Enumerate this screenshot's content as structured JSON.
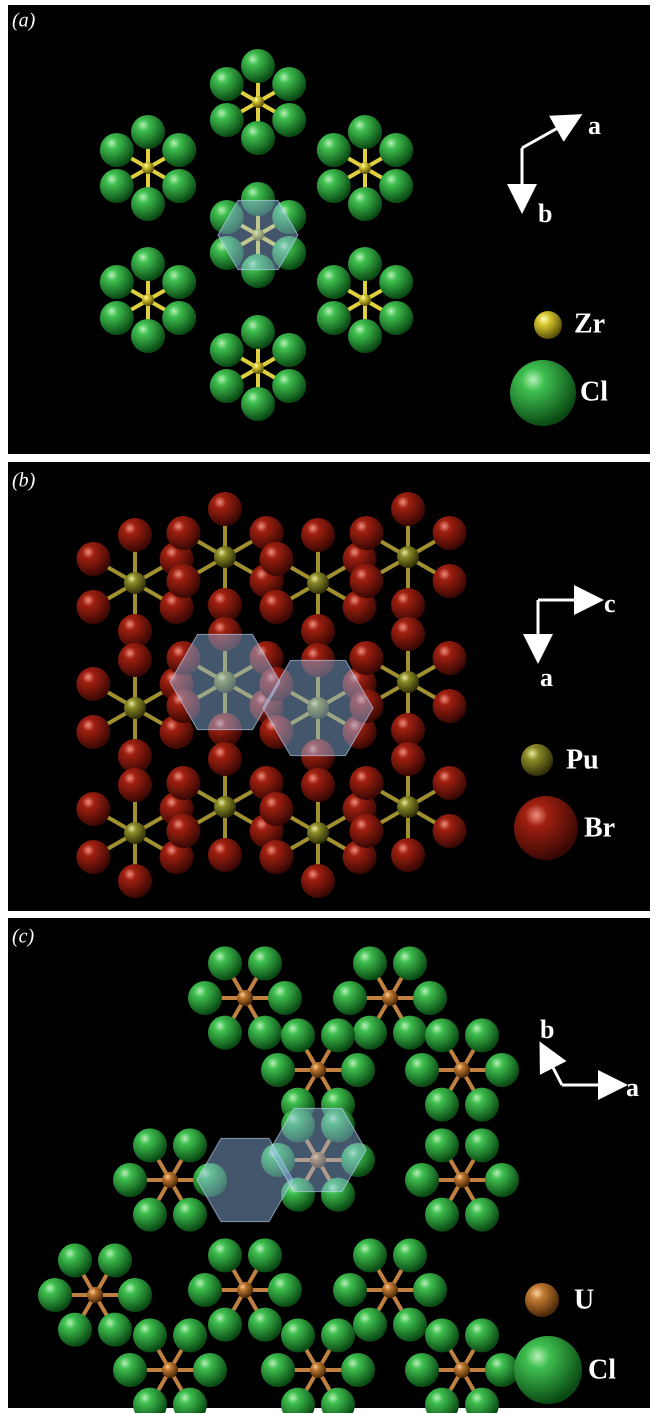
{
  "panels": [
    {
      "label": "(a)",
      "axes": [
        "a",
        "b"
      ],
      "legend": [
        "Zr",
        "Cl"
      ]
    },
    {
      "label": "(b)",
      "axes": [
        "c",
        "a"
      ],
      "legend": [
        "Pu",
        "Br"
      ]
    },
    {
      "label": "(c)",
      "axes": [
        "b",
        "a"
      ],
      "legend": [
        "U",
        "Cl"
      ]
    }
  ]
}
